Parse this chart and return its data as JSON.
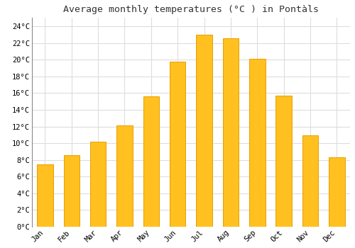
{
  "months": [
    "Jan",
    "Feb",
    "Mar",
    "Apr",
    "May",
    "Jun",
    "Jul",
    "Aug",
    "Sep",
    "Oct",
    "Nov",
    "Dec"
  ],
  "values": [
    7.5,
    8.6,
    10.2,
    12.1,
    15.6,
    19.8,
    23.0,
    22.6,
    20.1,
    15.7,
    10.9,
    8.3
  ],
  "bar_color": "#FFC020",
  "bar_edge_color": "#E8A000",
  "background_color": "#FFFFFF",
  "plot_bg_color": "#FFFFFF",
  "grid_color": "#DDDDDD",
  "title": "Average monthly temperatures (°C ) in Pontàls",
  "title_fontsize": 9.5,
  "ylim": [
    0,
    25
  ],
  "yticks": [
    0,
    2,
    4,
    6,
    8,
    10,
    12,
    14,
    16,
    18,
    20,
    22,
    24
  ],
  "ytick_labels": [
    "0°C",
    "2°C",
    "4°C",
    "6°C",
    "8°C",
    "10°C",
    "12°C",
    "14°C",
    "16°C",
    "18°C",
    "20°C",
    "22°C",
    "24°C"
  ],
  "tick_fontsize": 7.5,
  "font_family": "monospace",
  "bar_width": 0.6
}
